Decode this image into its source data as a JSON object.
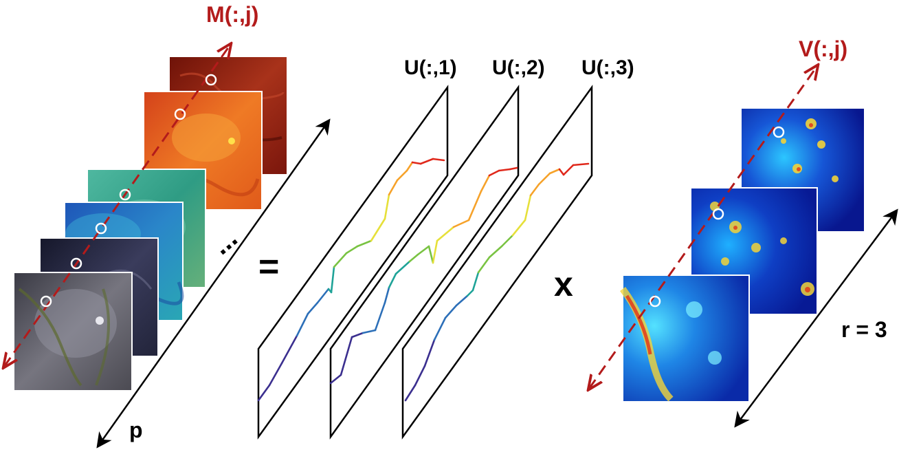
{
  "labels": {
    "m_col": "M(:,j)",
    "v_col": "V(:,j)",
    "u1": "U(:,1)",
    "u2": "U(:,2)",
    "u3": "U(:,3)",
    "p": "p",
    "r": "r = 3",
    "equals": "=",
    "times": "x",
    "ellipsis": "..."
  },
  "colors": {
    "accent_red": "#b31b1b",
    "frame": "#000000",
    "circle": "#ffffff"
  },
  "left_stack": {
    "count": 6,
    "palette": [
      "#8c1a0e",
      "#e5621b",
      "#3aa58c",
      "#2a73c2",
      "#2b2d4a",
      "#4c4b5a"
    ]
  },
  "right_stack": {
    "count": 3,
    "palette": [
      "#0a1ea0",
      "#0d2cb0",
      "#1554d0"
    ]
  },
  "u_panels": {
    "count": 3,
    "curve_colormap": [
      "#3b2f8f",
      "#2c6fb8",
      "#1fa398",
      "#79c342",
      "#e6e03a",
      "#f6a22a",
      "#e0281b"
    ]
  }
}
